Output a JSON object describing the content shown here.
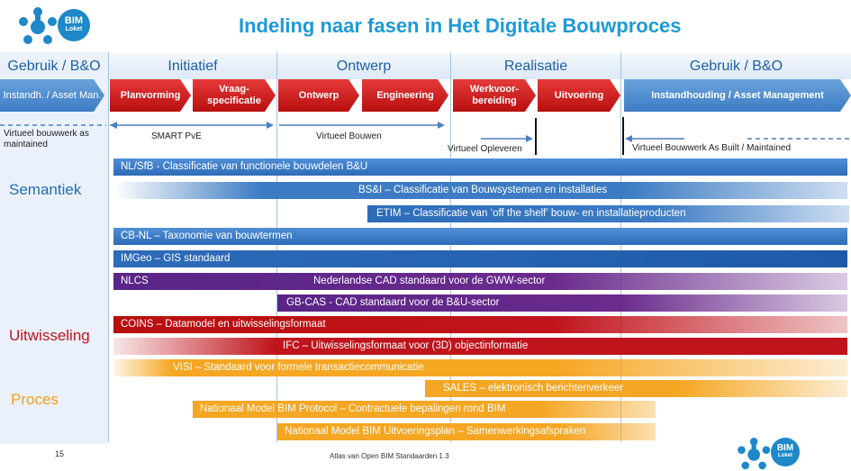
{
  "logo": {
    "text_top": "BIM",
    "text_bottom": "Loket"
  },
  "title": "Indeling naar fasen in Het Digitale Bouwproces",
  "phases": [
    "Gebruik / B&O",
    "Initiatief",
    "Ontwerp",
    "Realisatie",
    "Gebruik / B&O"
  ],
  "steps": [
    "Instandh. / Asset Man.",
    "Planvorming",
    "Vraag- specificatie",
    "Ontwerp",
    "Engineering",
    "Werkvoor- bereiding",
    "Uitvoering",
    "Instandhouding / Asset Management"
  ],
  "milestones": {
    "left": "Virtueel bouwwerk as maintained",
    "smart": "SMART PvE",
    "virtueel_bouwen": "Virtueel Bouwen",
    "opleveren": "Virtueel Opleveren",
    "as_built": "Virtueel Bouwwerk As Built / Maintained"
  },
  "categories": {
    "semantiek": "Semantiek",
    "uitwisseling": "Uitwisseling",
    "proces": "Proces"
  },
  "colors": {
    "blue": "#3d7cc4",
    "purple": "#6a2b8c",
    "red": "#c0141c",
    "orange": "#f5a623",
    "title": "#1e9ad6",
    "cat_semantiek": "#1f6fb8",
    "cat_uitwisseling": "#c0141c",
    "cat_proces": "#f0a020"
  },
  "standards": [
    {
      "id": "nlsfb",
      "label": "NL/SfB  - Classificatie van functionele bouwdelen B&U",
      "group": "blue"
    },
    {
      "id": "bsi",
      "label": "BS&I – Classificatie van Bouwsystemen en  installaties",
      "group": "blue"
    },
    {
      "id": "etim",
      "label": "ETIM – Classificatie van ‘off the shelf’ bouw- en installatieproducten",
      "group": "blue"
    },
    {
      "id": "cbnl",
      "label": "CB-NL –  Taxonomie van bouwtermen",
      "group": "blue"
    },
    {
      "id": "imgeo",
      "label": "IMGeo – GIS standaard",
      "group": "blue"
    },
    {
      "id": "nlcs_short",
      "label": "NLCS",
      "group": "purple"
    },
    {
      "id": "nlcs_long",
      "label": "Nederlandse CAD standaard voor de GWW-sector",
      "group": "purple"
    },
    {
      "id": "gbcas",
      "label": "GB-CAS - CAD standaard voor de B&U-sector",
      "group": "purple"
    },
    {
      "id": "coins",
      "label": "COINS – Datamodel en uitwisselingsformaat",
      "group": "red"
    },
    {
      "id": "ifc",
      "label": "IFC – Uitwisselingsformaat voor (3D) objectinformatie",
      "group": "red"
    },
    {
      "id": "visi",
      "label": "VISI – Standaard voor formele transactiecommunicatie",
      "group": "orange"
    },
    {
      "id": "sales",
      "label": "SALES – elektronisch berichtenverkeer",
      "group": "orange"
    },
    {
      "id": "nmbp",
      "label": "Nationaal Model BIM Protocol – Contractuele bepalingen rond BIM",
      "group": "orange"
    },
    {
      "id": "nmbu",
      "label": "Nationaal Model BIM Uitvoeringsplan – Samenwerkingsafspraken",
      "group": "orange"
    }
  ],
  "footer": {
    "page": "15",
    "caption": "Atlas van Open BIM Standaarden 1.3"
  }
}
